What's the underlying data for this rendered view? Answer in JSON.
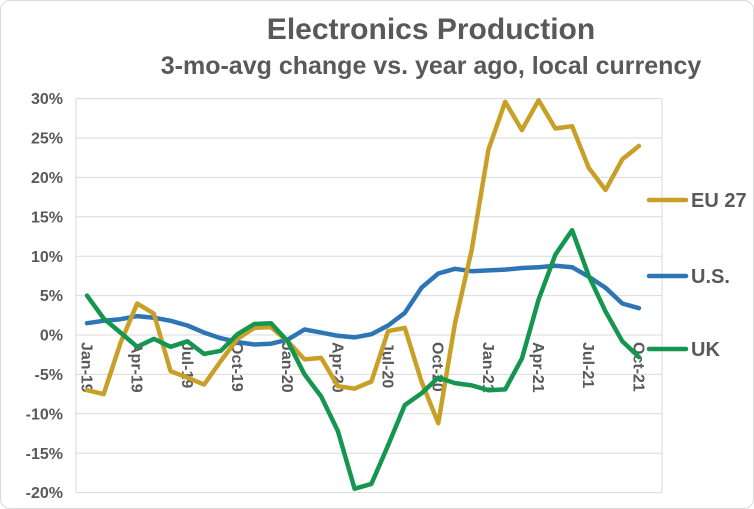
{
  "chart_data": {
    "type": "line",
    "title": "Electronics Production",
    "subtitle": "3-mo-avg change vs. year ago, local currency",
    "x": [
      "Jan-19",
      "Feb-19",
      "Mar-19",
      "Apr-19",
      "May-19",
      "Jun-19",
      "Jul-19",
      "Aug-19",
      "Sep-19",
      "Oct-19",
      "Nov-19",
      "Dec-19",
      "Jan-20",
      "Feb-20",
      "Mar-20",
      "Apr-20",
      "May-20",
      "Jun-20",
      "Jul-20",
      "Aug-20",
      "Sep-20",
      "Oct-20",
      "Nov-20",
      "Dec-20",
      "Jan-21",
      "Feb-21",
      "Mar-21",
      "Apr-21",
      "May-21",
      "Jun-21",
      "Jul-21",
      "Aug-21",
      "Sep-21",
      "Oct-21"
    ],
    "x_tick_labels": [
      "Jan-19",
      "Apr-19",
      "Jul-19",
      "Oct-19",
      "Jan-20",
      "Apr-20",
      "Jul-20",
      "Oct-20",
      "Jan-21",
      "Apr-21",
      "Jul-21",
      "Oct-21"
    ],
    "x_tick_every": 3,
    "series": [
      {
        "name": "EU 27",
        "color": "#c8a028",
        "values": [
          -7.0,
          -7.5,
          -1.0,
          4.0,
          2.7,
          -4.6,
          -5.4,
          -6.3,
          -3.3,
          -0.5,
          0.9,
          1.0,
          -0.8,
          -3.1,
          -2.9,
          -6.5,
          -6.8,
          -5.9,
          0.5,
          0.9,
          -5.9,
          -11.2,
          1.5,
          10.8,
          23.5,
          29.6,
          26.0,
          29.8,
          26.2,
          26.5,
          21.2,
          18.4,
          22.3,
          24.0
        ]
      },
      {
        "name": "U.S.",
        "color": "#2e75b6",
        "values": [
          1.5,
          1.8,
          2.0,
          2.4,
          2.2,
          1.8,
          1.2,
          0.3,
          -0.4,
          -0.9,
          -1.2,
          -1.1,
          -0.6,
          0.7,
          0.3,
          -0.1,
          -0.3,
          0.1,
          1.2,
          2.8,
          6.0,
          7.8,
          8.4,
          8.1,
          8.2,
          8.3,
          8.5,
          8.6,
          8.8,
          8.6,
          7.4,
          6.0,
          4.0,
          3.4
        ]
      },
      {
        "name": "UK",
        "color": "#149650",
        "values": [
          5.0,
          2.1,
          0.3,
          -1.5,
          -0.5,
          -1.5,
          -0.8,
          -2.4,
          -2.0,
          0.1,
          1.4,
          1.5,
          -0.8,
          -5.0,
          -7.8,
          -12.2,
          -19.5,
          -18.9,
          -14.0,
          -8.9,
          -7.4,
          -5.4,
          -6.1,
          -6.4,
          -7.0,
          -6.9,
          -3.0,
          4.5,
          10.2,
          13.3,
          7.5,
          3.0,
          -0.8,
          -2.8
        ]
      }
    ],
    "ylim": [
      -20,
      30
    ],
    "ytick_values": [
      30,
      25,
      20,
      15,
      10,
      5,
      0,
      -5,
      -10,
      -15,
      -20
    ],
    "ytick_labels": [
      "30%",
      "25%",
      "20%",
      "15%",
      "10%",
      "5%",
      "0%",
      "-5%",
      "-10%",
      "-15%",
      "-20%"
    ],
    "grid": true,
    "legend_position": "right",
    "axis_text_color": "#595959",
    "grid_color": "#d9d9d9",
    "background": "#ffffff"
  }
}
